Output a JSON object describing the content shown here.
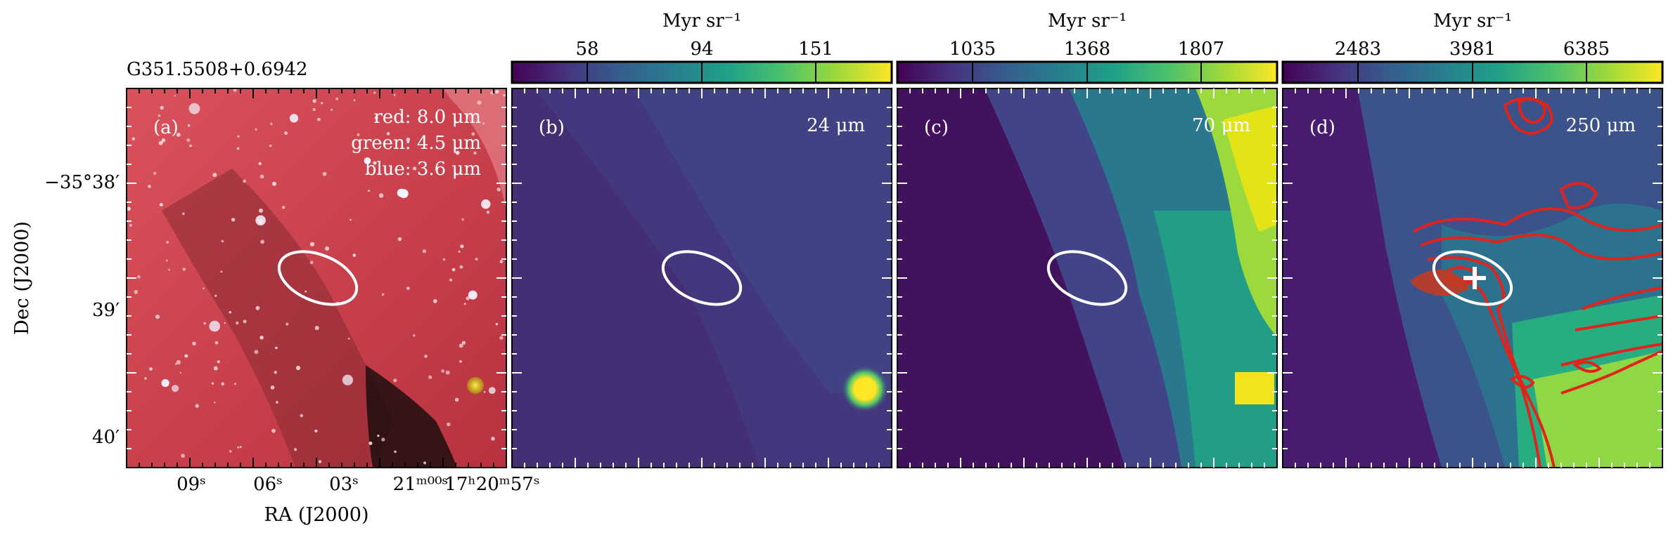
{
  "figure": {
    "source_name": "G351.5508+0.6942",
    "y_axis_label": "Dec (J2000)",
    "x_axis_label": "RA (J2000)",
    "y_ticks": [
      "−35°38′",
      "39′",
      "40′"
    ],
    "x_ticks": [
      "09ˢ",
      "06ˢ",
      "03ˢ",
      "21ᵐ⁰⁰ˢ",
      "17ʰ20ᵐ57ˢ"
    ]
  },
  "panels": [
    {
      "letter": "(a)",
      "band_lines": [
        "red: 8.0 μm",
        "green: 4.5 μm",
        "blue: 3.6 μm"
      ],
      "colorbar": null
    },
    {
      "letter": "(b)",
      "band": "24 μm",
      "colorbar": {
        "unit": "Myr sr⁻¹",
        "ticks": [
          "58",
          "94",
          "151"
        ]
      }
    },
    {
      "letter": "(c)",
      "band": "70 μm",
      "colorbar": {
        "unit": "Myr sr⁻¹",
        "ticks": [
          "1035",
          "1368",
          "1807"
        ]
      }
    },
    {
      "letter": "(d)",
      "band": "250 μm",
      "colorbar": {
        "unit": "Myr sr⁻¹",
        "ticks": [
          "2483",
          "3981",
          "6385"
        ]
      }
    }
  ],
  "colors": {
    "viridis": [
      "#440154",
      "#46327e",
      "#365c8d",
      "#277f8e",
      "#1fa187",
      "#4ac16d",
      "#a0da39",
      "#fde725"
    ],
    "contour": "#e0241b",
    "ellipse": "#ffffff"
  }
}
